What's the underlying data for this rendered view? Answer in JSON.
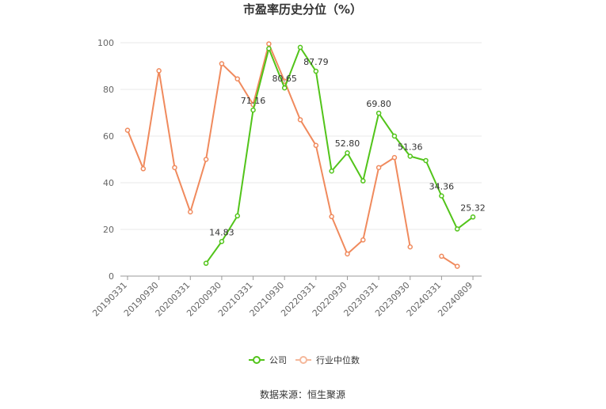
{
  "chart_data": {
    "type": "line",
    "title": "市盈率历史分位（%）",
    "x": [
      "20190331",
      "20190630",
      "20190930",
      "20191231",
      "20200331",
      "20200630",
      "20200930",
      "20201231",
      "20210331",
      "20210630",
      "20210930",
      "20211231",
      "20220331",
      "20220630",
      "20220930",
      "20221231",
      "20230331",
      "20230630",
      "20230930",
      "20231231",
      "20240331",
      "20240630",
      "20240809"
    ],
    "x_tick_labels": [
      "20190331",
      "20190930",
      "20200331",
      "20200930",
      "20210331",
      "20210930",
      "20220331",
      "20220930",
      "20230331",
      "20230930",
      "20240331",
      "20240809"
    ],
    "ylim": [
      0,
      100
    ],
    "y_ticks": [
      0,
      20,
      40,
      60,
      80,
      100
    ],
    "grid": true,
    "legend_position": "bottom",
    "series": [
      {
        "name": "公司",
        "color": "#52c41a",
        "values": [
          null,
          null,
          null,
          null,
          null,
          5.5,
          14.83,
          25.8,
          71.16,
          97.5,
          80.65,
          98.0,
          87.79,
          45.0,
          52.8,
          40.8,
          69.8,
          60.0,
          51.36,
          49.5,
          34.36,
          20.2,
          25.32
        ],
        "labels": [
          null,
          null,
          null,
          null,
          null,
          null,
          "14.83",
          null,
          "71.16",
          null,
          "80.65",
          null,
          "87.79",
          null,
          "52.80",
          null,
          "69.80",
          null,
          "51.36",
          null,
          "34.36",
          null,
          "25.32"
        ]
      },
      {
        "name": "行业中位数",
        "color": "#f08a5d",
        "values": [
          62.5,
          46.0,
          88.0,
          46.5,
          27.5,
          50.0,
          91.0,
          84.5,
          73.5,
          99.5,
          83.5,
          67.0,
          56.0,
          25.5,
          9.5,
          15.5,
          46.5,
          50.8,
          12.5,
          null,
          8.5,
          4.2,
          null
        ]
      }
    ]
  },
  "source": "数据来源：恒生聚源"
}
